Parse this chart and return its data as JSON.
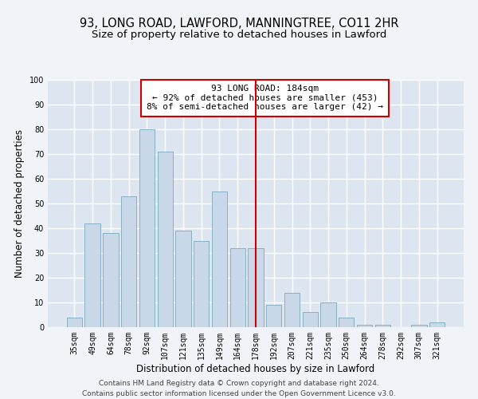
{
  "title_line1": "93, LONG ROAD, LAWFORD, MANNINGTREE, CO11 2HR",
  "title_line2": "Size of property relative to detached houses in Lawford",
  "xlabel": "Distribution of detached houses by size in Lawford",
  "ylabel": "Number of detached properties",
  "categories": [
    "35sqm",
    "49sqm",
    "64sqm",
    "78sqm",
    "92sqm",
    "107sqm",
    "121sqm",
    "135sqm",
    "149sqm",
    "164sqm",
    "178sqm",
    "192sqm",
    "207sqm",
    "221sqm",
    "235sqm",
    "250sqm",
    "264sqm",
    "278sqm",
    "292sqm",
    "307sqm",
    "321sqm"
  ],
  "values": [
    4,
    42,
    38,
    53,
    80,
    71,
    39,
    35,
    55,
    32,
    32,
    9,
    14,
    6,
    10,
    4,
    1,
    1,
    0,
    1,
    2
  ],
  "bar_color": "#c8d8e8",
  "bar_edge_color": "#7aaabb",
  "vline_color": "#cc0000",
  "vline_x": 10.5,
  "annotation_text": "93 LONG ROAD: 184sqm\n← 92% of detached houses are smaller (453)\n8% of semi-detached houses are larger (42) →",
  "annotation_box_color": "#ffffff",
  "annotation_box_edge_color": "#cc0000",
  "ylim": [
    0,
    100
  ],
  "yticks": [
    0,
    10,
    20,
    30,
    40,
    50,
    60,
    70,
    80,
    90,
    100
  ],
  "background_color": "#dde6f0",
  "plot_bg_color": "#dde6f0",
  "grid_color": "#ffffff",
  "fig_bg_color": "#f0f4f8",
  "footer_line1": "Contains HM Land Registry data © Crown copyright and database right 2024.",
  "footer_line2": "Contains public sector information licensed under the Open Government Licence v3.0.",
  "title_fontsize": 10.5,
  "subtitle_fontsize": 9.5,
  "axis_label_fontsize": 8.5,
  "tick_fontsize": 7,
  "annotation_fontsize": 8,
  "footer_fontsize": 6.5
}
